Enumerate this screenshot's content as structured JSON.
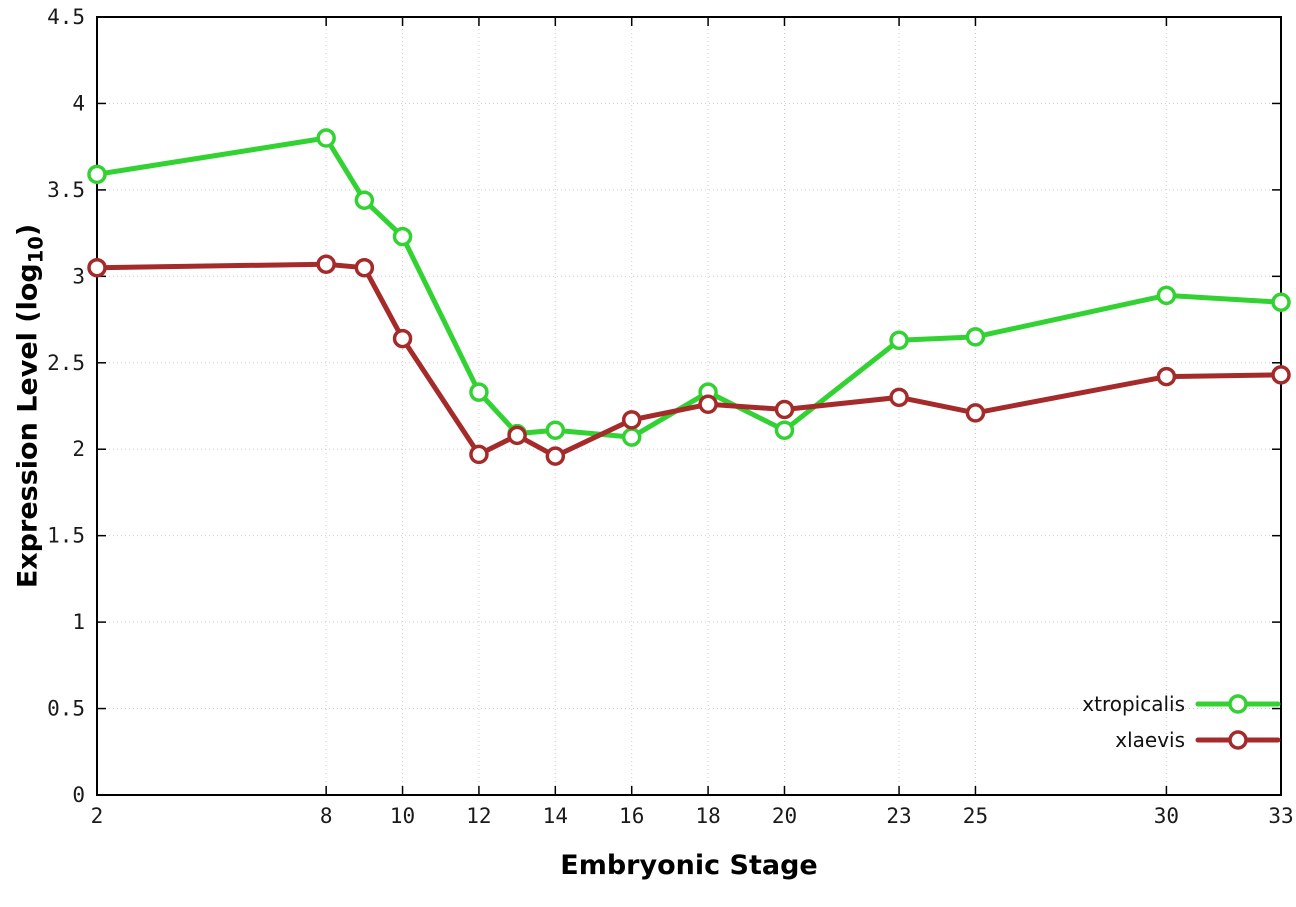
{
  "labels": {
    "ylabel_prefix": "Expression Level (log",
    "ylabel_sub": "10",
    "ylabel_suffix": ")"
  },
  "chart_data": {
    "type": "line",
    "title": "",
    "xlabel": "Embryonic Stage",
    "ylabel": "Expression Level (log10)",
    "x": [
      2,
      8,
      9,
      10,
      12,
      13,
      14,
      16,
      18,
      20,
      23,
      25,
      30,
      33
    ],
    "series": [
      {
        "name": "xtropicalis",
        "color": "#32d232",
        "values": [
          3.59,
          3.8,
          3.44,
          3.23,
          2.33,
          2.09,
          2.11,
          2.07,
          2.33,
          2.11,
          2.63,
          2.65,
          2.89,
          2.85
        ]
      },
      {
        "name": "xlaevis",
        "color": "#a52a2a",
        "values": [
          3.05,
          3.07,
          3.05,
          2.64,
          1.97,
          2.08,
          1.96,
          2.17,
          2.26,
          2.23,
          2.3,
          2.21,
          2.42,
          2.43
        ]
      }
    ],
    "xlim": [
      2,
      33
    ],
    "ylim": [
      0,
      4.5
    ],
    "xticks": [
      2,
      8,
      10,
      12,
      14,
      16,
      18,
      20,
      23,
      25,
      30,
      33
    ],
    "xtick_labels": [
      "2",
      "8",
      "10",
      "12",
      "14",
      "16",
      "18",
      "20",
      "23",
      "25",
      "30",
      "33"
    ],
    "yticks": [
      0,
      0.5,
      1,
      1.5,
      2,
      2.5,
      3,
      3.5,
      4,
      4.5
    ],
    "ytick_labels": [
      "0",
      "0.5",
      "1",
      "1.5",
      "2",
      "2.5",
      "3",
      "3.5",
      "4",
      "4.5"
    ],
    "grid": true,
    "legend_position": "bottom-right",
    "marker": "open-circle"
  }
}
